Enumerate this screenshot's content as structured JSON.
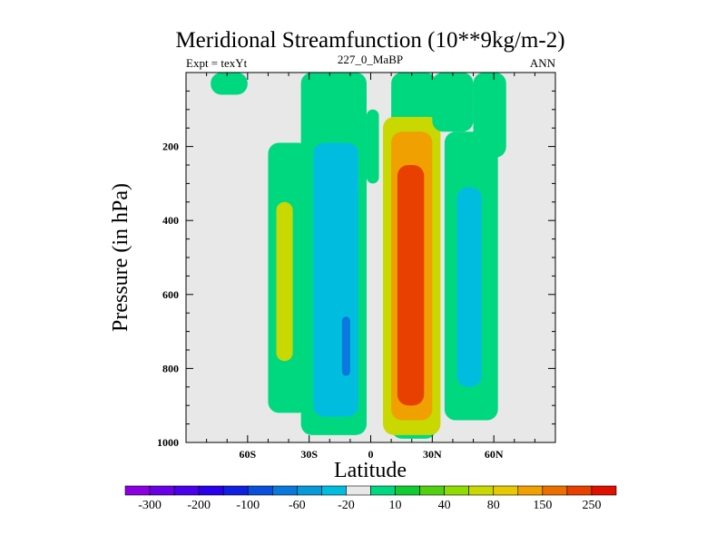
{
  "chart_data": {
    "type": "heatmap",
    "title": "Meridional Streamfunction (10**9kg/m-2)",
    "left_string": "Expt = texYt",
    "center_string": "227_0_MaBP",
    "right_string": "ANN",
    "xlabel": "Latitude",
    "ylabel": "Pressure (in hPa)",
    "xlim": [
      -90,
      90
    ],
    "ylim": [
      1000,
      0
    ],
    "x_ticks": [
      {
        "value": -60,
        "label": "60S"
      },
      {
        "value": -30,
        "label": "30S"
      },
      {
        "value": 0,
        "label": "0"
      },
      {
        "value": 30,
        "label": "30N"
      },
      {
        "value": 60,
        "label": "60N"
      }
    ],
    "y_ticks": [
      {
        "value": 200,
        "label": "200"
      },
      {
        "value": 400,
        "label": "400"
      },
      {
        "value": 600,
        "label": "600"
      },
      {
        "value": 800,
        "label": "800"
      },
      {
        "value": 1000,
        "label": "1000"
      }
    ],
    "colorbar": {
      "colors": [
        "#8a00e0",
        "#6a00e6",
        "#4a00ea",
        "#2a00ea",
        "#1020e0",
        "#0a50dc",
        "#0a78dc",
        "#089ad8",
        "#00bde0",
        "#e8e8e8",
        "#00d880",
        "#10cc30",
        "#50d010",
        "#90dc00",
        "#c8d800",
        "#e8c800",
        "#f0a000",
        "#ec7000",
        "#e84000",
        "#e01000"
      ],
      "labels": [
        "-300",
        "-200",
        "-100",
        "-60",
        "-20",
        "10",
        "40",
        "80",
        "150",
        "250"
      ]
    },
    "cells": [
      {
        "lat": [
          -78,
          -60
        ],
        "p": [
          0,
          60
        ],
        "value": 10
      },
      {
        "lat": [
          -50,
          -30
        ],
        "p": [
          190,
          920
        ],
        "value": 10
      },
      {
        "lat": [
          -46,
          -38
        ],
        "p": [
          350,
          780
        ],
        "value": 40
      },
      {
        "lat": [
          -34,
          -2
        ],
        "p": [
          0,
          980
        ],
        "value": -20
      },
      {
        "lat": [
          -28,
          -6
        ],
        "p": [
          190,
          930
        ],
        "value": -60
      },
      {
        "lat": [
          -14,
          -10
        ],
        "p": [
          660,
          820
        ],
        "value": -100
      },
      {
        "lat": [
          -2,
          4
        ],
        "p": [
          100,
          300
        ],
        "value": 10
      },
      {
        "lat": [
          10,
          32
        ],
        "p": [
          0,
          990
        ],
        "value": 10
      },
      {
        "lat": [
          6,
          34
        ],
        "p": [
          120,
          980
        ],
        "value": 40
      },
      {
        "lat": [
          10,
          30
        ],
        "p": [
          160,
          940
        ],
        "value": 80
      },
      {
        "lat": [
          13,
          26
        ],
        "p": [
          250,
          900
        ],
        "value": 150
      },
      {
        "lat": [
          30,
          50
        ],
        "p": [
          0,
          160
        ],
        "value": -20
      },
      {
        "lat": [
          36,
          62
        ],
        "p": [
          160,
          940
        ],
        "value": -20
      },
      {
        "lat": [
          42,
          54
        ],
        "p": [
          310,
          850
        ],
        "value": -60
      },
      {
        "lat": [
          50,
          66
        ],
        "p": [
          0,
          230
        ],
        "value": -20
      }
    ]
  }
}
